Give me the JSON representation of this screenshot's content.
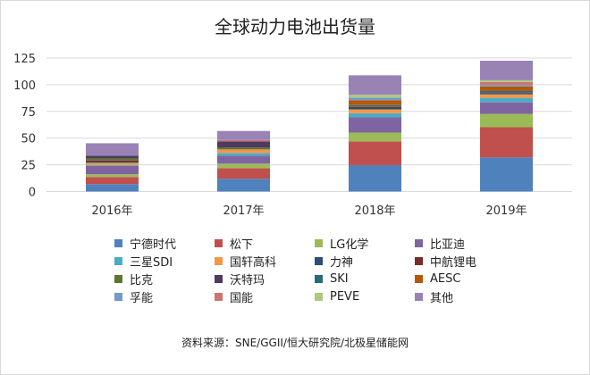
{
  "chart_data": {
    "type": "bar",
    "stacked": true,
    "title": "全球动力电池出货量",
    "categories": [
      "2016年",
      "2017年",
      "2018年",
      "2019年"
    ],
    "ylim": [
      0,
      125
    ],
    "yticks": [
      0,
      25,
      50,
      75,
      100,
      125
    ],
    "grid": true,
    "legend_placement": "bottom",
    "series": [
      {
        "name": "宁德时代",
        "color": "#4F81BD",
        "values": [
          6.9,
          11.9,
          24.7,
          31.9
        ]
      },
      {
        "name": "松下",
        "color": "#C0504D",
        "values": [
          6.7,
          10.0,
          22.2,
          28.3
        ]
      },
      {
        "name": "LG化学",
        "color": "#9BBB59",
        "values": [
          2.5,
          4.2,
          8.3,
          12.5
        ]
      },
      {
        "name": "比亚迪",
        "color": "#8064A2",
        "values": [
          7.8,
          7.5,
          14.2,
          10.8
        ]
      },
      {
        "name": "三星SDI",
        "color": "#4BACC6",
        "values": [
          0.8,
          2.5,
          3.9,
          4.2
        ]
      },
      {
        "name": "国轩高科",
        "color": "#F79646",
        "values": [
          2.2,
          3.3,
          3.6,
          3.3
        ]
      },
      {
        "name": "力神",
        "color": "#2C4D75",
        "values": [
          1.1,
          0,
          1.7,
          1.1
        ]
      },
      {
        "name": "中航锂电",
        "color": "#772C2A",
        "values": [
          1.1,
          0,
          0.5,
          0.5
        ]
      },
      {
        "name": "比克",
        "color": "#5F7530",
        "values": [
          1.9,
          1.7,
          1.1,
          0
        ]
      },
      {
        "name": "沃特玛",
        "color": "#4D3B62",
        "values": [
          2.5,
          5.8,
          0.6,
          0
        ]
      },
      {
        "name": "SKI",
        "color": "#276A7C",
        "values": [
          0,
          0,
          0.5,
          1.5
        ]
      },
      {
        "name": "AESC",
        "color": "#B65708",
        "values": [
          0,
          0,
          4.2,
          4.2
        ]
      },
      {
        "name": "孚能",
        "color": "#729ACA",
        "values": [
          0,
          0,
          2.5,
          1.4
        ]
      },
      {
        "name": "国能",
        "color": "#CD7371",
        "values": [
          0,
          1.4,
          0,
          2.8
        ]
      },
      {
        "name": "PEVE",
        "color": "#AFC97A",
        "values": [
          0,
          0,
          2.5,
          1.7
        ]
      },
      {
        "name": "其他",
        "color": "#9983B5",
        "values": [
          11.7,
          8.4,
          18.3,
          18.3
        ]
      }
    ]
  },
  "footer": "资料来源：SNE/GGII/恒大研究院/北极星储能网"
}
